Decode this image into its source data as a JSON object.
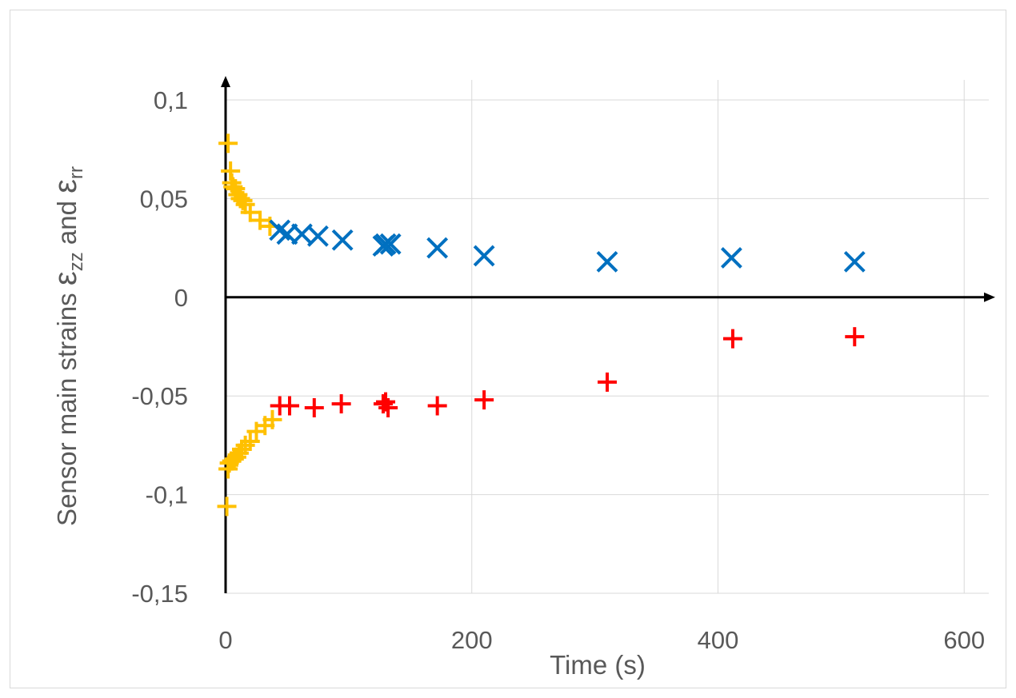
{
  "chart_data": {
    "type": "scatter",
    "xlabel": "Time (s)",
    "ylabel": {
      "prefix": "Sensor main strains ",
      "symbol1": "ε",
      "sub1": "zz",
      "middle": " and ",
      "symbol2": "ε",
      "sub2": "rr"
    },
    "xlim": [
      0,
      620
    ],
    "ylim": [
      -0.15,
      0.1
    ],
    "x_ticks": [
      0,
      200,
      400,
      600
    ],
    "x_tick_labels": [
      "0",
      "200",
      "400",
      "600"
    ],
    "y_ticks": [
      0.1,
      0.05,
      0,
      -0.05,
      -0.1,
      -0.15
    ],
    "y_tick_labels": [
      "0,1",
      "0,05",
      "0",
      "-0,05",
      "-0,1",
      "-0,15"
    ],
    "grid": true,
    "legend": "none",
    "series": [
      {
        "marker": "plus",
        "color": "#ffc000",
        "points": [
          [
            2,
            0.078
          ],
          [
            4,
            0.064
          ],
          [
            5,
            0.058
          ],
          [
            6,
            0.056
          ],
          [
            8,
            0.055
          ],
          [
            10,
            0.052
          ],
          [
            12,
            0.05
          ],
          [
            14,
            0.049
          ],
          [
            16,
            0.047
          ],
          [
            20,
            0.043
          ],
          [
            28,
            0.039
          ],
          [
            36,
            0.036
          ],
          [
            1,
            -0.106
          ],
          [
            2,
            -0.087
          ],
          [
            3,
            -0.084
          ],
          [
            5,
            -0.083
          ],
          [
            7,
            -0.082
          ],
          [
            9,
            -0.081
          ],
          [
            11,
            -0.079
          ],
          [
            13,
            -0.077
          ],
          [
            16,
            -0.075
          ],
          [
            20,
            -0.073
          ],
          [
            25,
            -0.068
          ],
          [
            32,
            -0.065
          ],
          [
            38,
            -0.062
          ]
        ]
      },
      {
        "marker": "x",
        "color": "#0070c0",
        "points": [
          [
            44,
            0.034
          ],
          [
            50,
            0.032
          ],
          [
            62,
            0.032
          ],
          [
            75,
            0.031
          ],
          [
            95,
            0.029
          ],
          [
            128,
            0.026
          ],
          [
            130,
            0.027
          ],
          [
            134,
            0.027
          ],
          [
            172,
            0.025
          ],
          [
            210,
            0.021
          ],
          [
            310,
            0.018
          ],
          [
            411,
            0.02
          ],
          [
            511,
            0.018
          ]
        ]
      },
      {
        "marker": "plus",
        "color": "#ff0000",
        "points": [
          [
            44,
            -0.055
          ],
          [
            52,
            -0.055
          ],
          [
            72,
            -0.056
          ],
          [
            94,
            -0.054
          ],
          [
            128,
            -0.054
          ],
          [
            130,
            -0.053
          ],
          [
            132,
            -0.056
          ],
          [
            172,
            -0.055
          ],
          [
            210,
            -0.052
          ],
          [
            310,
            -0.043
          ],
          [
            412,
            -0.021
          ],
          [
            511,
            -0.02
          ]
        ]
      }
    ]
  }
}
